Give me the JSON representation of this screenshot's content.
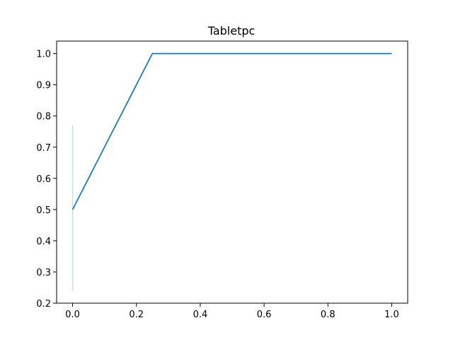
{
  "chart_data": {
    "type": "line",
    "title": "Tabletpc",
    "xlabel": "",
    "ylabel": "",
    "xlim": [
      -0.05,
      1.05
    ],
    "ylim": [
      0.2,
      1.04
    ],
    "xticks": [
      0.0,
      0.2,
      0.4,
      0.6,
      0.8,
      1.0
    ],
    "xtick_labels": [
      "0.0",
      "0.2",
      "0.4",
      "0.6",
      "0.8",
      "1.0"
    ],
    "yticks": [
      0.2,
      0.3,
      0.4,
      0.5,
      0.6,
      0.7,
      0.8,
      0.9,
      1.0
    ],
    "ytick_labels": [
      "0.2",
      "0.3",
      "0.4",
      "0.5",
      "0.6",
      "0.7",
      "0.8",
      "0.9",
      "1.0"
    ],
    "grid": false,
    "legend": "none",
    "series": [
      {
        "x": [
          0.0,
          0.25,
          1.0
        ],
        "y": [
          0.5,
          1.0,
          1.0
        ],
        "color": "#1f77b4",
        "error_band": {
          "x": 0.0,
          "lower": 0.24,
          "upper": 0.77,
          "color": "#1f77b4"
        }
      }
    ]
  }
}
